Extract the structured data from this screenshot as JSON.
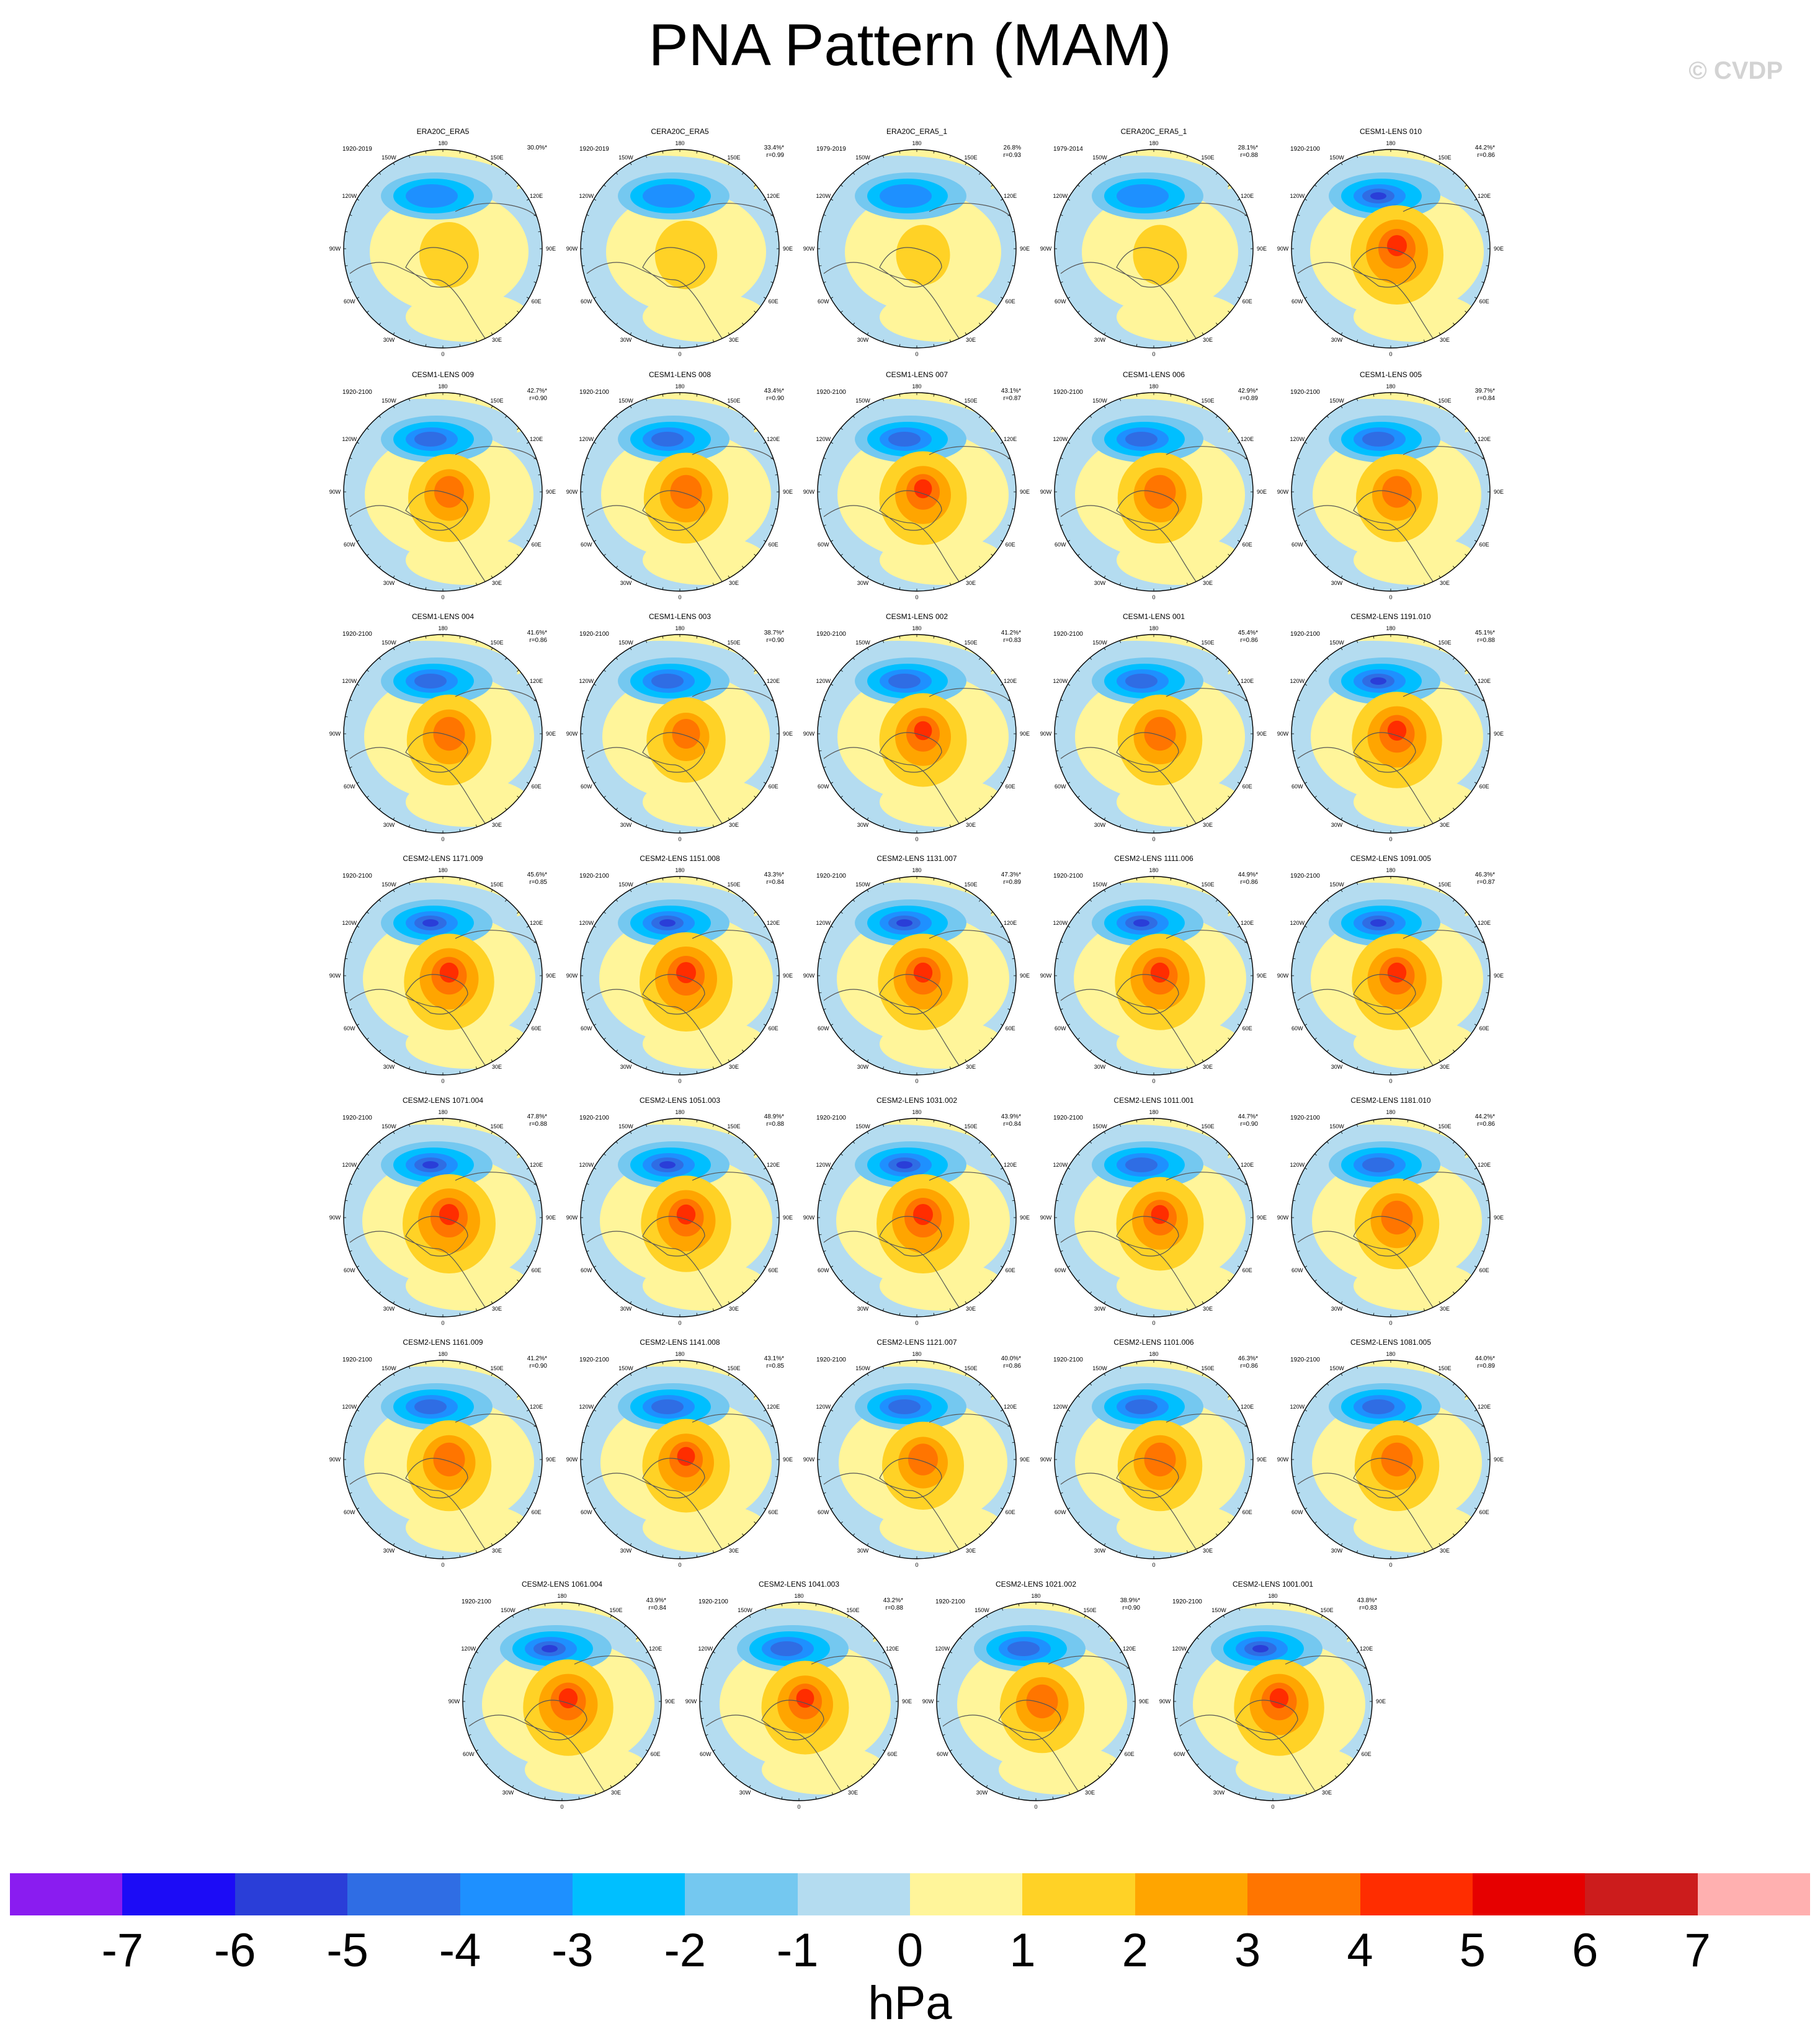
{
  "title": "PNA Pattern (MAM)",
  "credit": "© CVDP",
  "longitude_labels": [
    "180",
    "150E",
    "120E",
    "90E",
    "60E",
    "30E",
    "0",
    "30W",
    "60W",
    "90W",
    "120W",
    "150W"
  ],
  "colorbar": {
    "units": "hPa",
    "colors": [
      "#8a1cf0",
      "#1c0cf6",
      "#2a3ed8",
      "#2f6de4",
      "#1e90ff",
      "#00bfff",
      "#74c8f0",
      "#b4dcf0",
      "#fff59a",
      "#ffd226",
      "#ffa500",
      "#ff7500",
      "#ff2d00",
      "#e60000",
      "#cc1c1c",
      "#ffb0b0"
    ],
    "labels": [
      "-7",
      "-6",
      "-5",
      "-4",
      "-3",
      "-2",
      "-1",
      "0",
      "1",
      "2",
      "3",
      "4",
      "5",
      "6",
      "7"
    ]
  },
  "panels": [
    {
      "name": "ERA20C_ERA5",
      "years": "1920-2019",
      "pct": "30.0%*",
      "r": "",
      "intensity": 0.4
    },
    {
      "name": "CERA20C_ERA5",
      "years": "1920-2019",
      "pct": "33.4%*",
      "r": "r=0.99",
      "intensity": 0.45
    },
    {
      "name": "ERA20C_ERA5_1",
      "years": "1979-2019",
      "pct": "26.8%",
      "r": "r=0.93",
      "intensity": 0.3
    },
    {
      "name": "CERA20C_ERA5_1",
      "years": "1979-2014",
      "pct": "28.1%*",
      "r": "r=0.88",
      "intensity": 0.3
    },
    {
      "name": "CESM1-LENS 010",
      "years": "1920-2100",
      "pct": "44.2%*",
      "r": "r=0.86",
      "intensity": 1.0
    },
    {
      "name": "CESM1-LENS 009",
      "years": "1920-2100",
      "pct": "42.7%*",
      "r": "r=0.90",
      "intensity": 0.8
    },
    {
      "name": "CESM1-LENS 008",
      "years": "1920-2100",
      "pct": "43.4%*",
      "r": "r=0.90",
      "intensity": 0.85
    },
    {
      "name": "CESM1-LENS 007",
      "years": "1920-2100",
      "pct": "43.1%*",
      "r": "r=0.87",
      "intensity": 0.9
    },
    {
      "name": "CESM1-LENS 006",
      "years": "1920-2100",
      "pct": "42.9%*",
      "r": "r=0.89",
      "intensity": 0.85
    },
    {
      "name": "CESM1-LENS 005",
      "years": "1920-2100",
      "pct": "39.7%*",
      "r": "r=0.84",
      "intensity": 0.8
    },
    {
      "name": "CESM1-LENS 004",
      "years": "1920-2100",
      "pct": "41.6%*",
      "r": "r=0.86",
      "intensity": 0.85
    },
    {
      "name": "CESM1-LENS 003",
      "years": "1920-2100",
      "pct": "38.7%*",
      "r": "r=0.90",
      "intensity": 0.75
    },
    {
      "name": "CESM1-LENS 002",
      "years": "1920-2100",
      "pct": "41.2%*",
      "r": "r=0.83",
      "intensity": 0.9
    },
    {
      "name": "CESM1-LENS 001",
      "years": "1920-2100",
      "pct": "45.4%*",
      "r": "r=0.86",
      "intensity": 0.85
    },
    {
      "name": "CESM2-LENS 1191.010",
      "years": "1920-2100",
      "pct": "45.1%*",
      "r": "r=0.88",
      "intensity": 0.95
    },
    {
      "name": "CESM2-LENS 1171.009",
      "years": "1920-2100",
      "pct": "45.6%*",
      "r": "r=0.85",
      "intensity": 0.95
    },
    {
      "name": "CESM2-LENS 1151.008",
      "years": "1920-2100",
      "pct": "43.3%*",
      "r": "r=0.84",
      "intensity": 1.0
    },
    {
      "name": "CESM2-LENS 1131.007",
      "years": "1920-2100",
      "pct": "47.3%*",
      "r": "r=0.89",
      "intensity": 0.95
    },
    {
      "name": "CESM2-LENS 1111.006",
      "years": "1920-2100",
      "pct": "44.9%*",
      "r": "r=0.86",
      "intensity": 0.95
    },
    {
      "name": "CESM2-LENS 1091.005",
      "years": "1920-2100",
      "pct": "46.3%*",
      "r": "r=0.87",
      "intensity": 0.95
    },
    {
      "name": "CESM2-LENS 1071.004",
      "years": "1920-2100",
      "pct": "47.8%*",
      "r": "r=0.88",
      "intensity": 1.0
    },
    {
      "name": "CESM2-LENS 1051.003",
      "years": "1920-2100",
      "pct": "48.9%*",
      "r": "r=0.88",
      "intensity": 0.95
    },
    {
      "name": "CESM2-LENS 1031.002",
      "years": "1920-2100",
      "pct": "43.9%*",
      "r": "r=0.84",
      "intensity": 1.0
    },
    {
      "name": "CESM2-LENS 1011.001",
      "years": "1920-2100",
      "pct": "44.7%*",
      "r": "r=0.90",
      "intensity": 0.9
    },
    {
      "name": "CESM2-LENS 1181.010",
      "years": "1920-2100",
      "pct": "44.2%*",
      "r": "r=0.86",
      "intensity": 0.85
    },
    {
      "name": "CESM2-LENS 1161.009",
      "years": "1920-2100",
      "pct": "41.2%*",
      "r": "r=0.90",
      "intensity": 0.85
    },
    {
      "name": "CESM2-LENS 1141.008",
      "years": "1920-2100",
      "pct": "43.1%*",
      "r": "r=0.85",
      "intensity": 0.9
    },
    {
      "name": "CESM2-LENS 1121.007",
      "years": "1920-2100",
      "pct": "40.0%*",
      "r": "r=0.86",
      "intensity": 0.8
    },
    {
      "name": "CESM2-LENS 1101.006",
      "years": "1920-2100",
      "pct": "46.3%*",
      "r": "r=0.86",
      "intensity": 0.85
    },
    {
      "name": "CESM2-LENS 1081.005",
      "years": "1920-2100",
      "pct": "44.0%*",
      "r": "r=0.89",
      "intensity": 0.85
    },
    {
      "name": "CESM2-LENS 1061.004",
      "years": "1920-2100",
      "pct": "43.9%*",
      "r": "r=0.84",
      "intensity": 0.95
    },
    {
      "name": "CESM2-LENS 1041.003",
      "years": "1920-2100",
      "pct": "43.2%*",
      "r": "r=0.88",
      "intensity": 0.9
    },
    {
      "name": "CESM2-LENS 1021.002",
      "years": "1920-2100",
      "pct": "38.9%*",
      "r": "r=0.90",
      "intensity": 0.85
    },
    {
      "name": "CESM2-LENS 1001.001",
      "years": "1920-2100",
      "pct": "43.8%*",
      "r": "r=0.83",
      "intensity": 0.95
    }
  ]
}
